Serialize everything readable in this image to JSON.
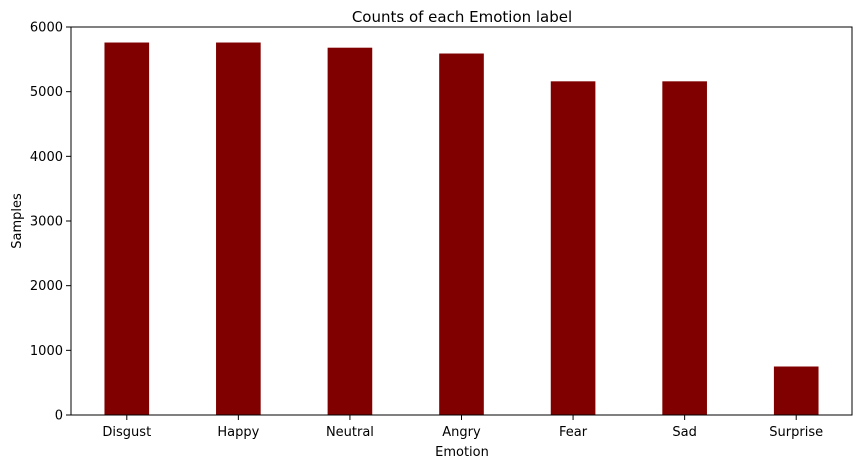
{
  "chart_data": {
    "type": "bar",
    "title": "Counts of each Emotion label",
    "xlabel": "Emotion",
    "ylabel": "Samples",
    "categories": [
      "Disgust",
      "Happy",
      "Neutral",
      "Angry",
      "Fear",
      "Sad",
      "Surprise"
    ],
    "values": [
      5760,
      5760,
      5680,
      5590,
      5160,
      5160,
      750
    ],
    "ylim": [
      0,
      6000
    ],
    "yticks": [
      0,
      1000,
      2000,
      3000,
      4000,
      5000,
      6000
    ],
    "ytick_labels": [
      "0",
      "1000",
      "2000",
      "3000",
      "4000",
      "5000",
      "6000"
    ],
    "grid": false,
    "legend": "none",
    "colors": {
      "bar": "#800000",
      "axis": "#000000",
      "background": "#ffffff"
    }
  }
}
